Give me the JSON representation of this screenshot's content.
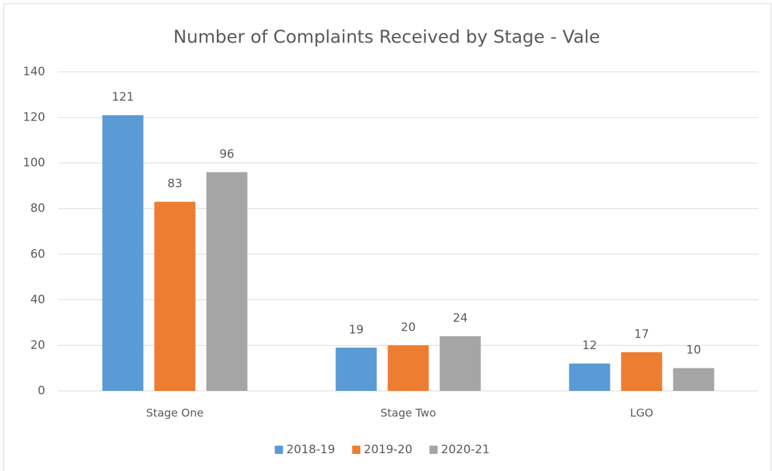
{
  "chart_data": {
    "type": "bar",
    "title": "Number of Complaints Received by Stage - Vale",
    "categories": [
      "Stage One",
      "Stage Two",
      "LGO"
    ],
    "series": [
      {
        "name": "2018-19",
        "color": "#5b9bd5",
        "values": [
          121,
          19,
          12
        ]
      },
      {
        "name": "2019-20",
        "color": "#ed7d31",
        "values": [
          83,
          20,
          17
        ]
      },
      {
        "name": "2020-21",
        "color": "#a5a5a5",
        "values": [
          96,
          24,
          10
        ]
      }
    ],
    "ylim": [
      0,
      140
    ],
    "yticks": [
      0,
      20,
      40,
      60,
      80,
      100,
      120,
      140
    ],
    "grid": true,
    "legend": "bottom"
  }
}
